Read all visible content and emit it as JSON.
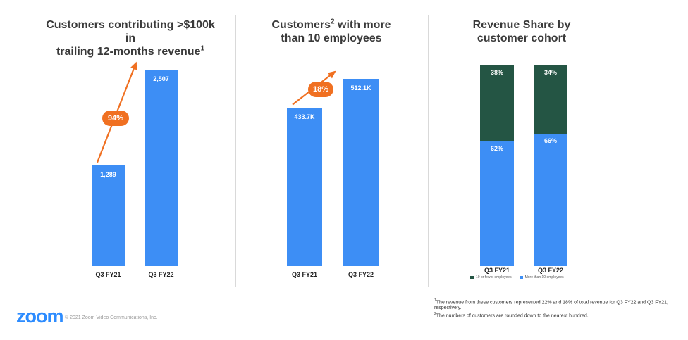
{
  "charts": {
    "left": {
      "title_line1": "Customers contributing >$100k in",
      "title_line2": "trailing 12-months revenue",
      "title_sup": "1",
      "growth": "94%"
    },
    "middle": {
      "title_pre": "Customers",
      "title_sup": "2",
      "title_post": " with more",
      "title_line2": "than 10 employees",
      "growth": "18%"
    },
    "right": {
      "title_line1": "Revenue Share by",
      "title_line2": "customer cohort",
      "legend_dark": "10 or fewer employees",
      "legend_blue": "More than 10 employees"
    }
  },
  "chart_data": [
    {
      "type": "bar",
      "title": "Customers contributing >$100k in trailing 12-months revenue",
      "categories": [
        "Q3 FY21",
        "Q3 FY22"
      ],
      "values": [
        1289,
        2507
      ],
      "labels": [
        "1,289",
        "2,507"
      ],
      "ylim": [
        0,
        2700
      ]
    },
    {
      "type": "bar",
      "title": "Customers with more than 10 employees",
      "categories": [
        "Q3 FY21",
        "Q3 FY22"
      ],
      "values": [
        433.7,
        512.1
      ],
      "labels": [
        "433.7K",
        "512.1K"
      ],
      "ylim": [
        0,
        535
      ]
    },
    {
      "type": "bar",
      "stacked": true,
      "title": "Revenue Share by customer cohort",
      "categories": [
        "Q3 FY21",
        "Q3 FY22"
      ],
      "series": [
        {
          "name": "More than 10 employees",
          "values": [
            62,
            66
          ],
          "labels": [
            "62%",
            "66%"
          ],
          "color": "#3d8ef5"
        },
        {
          "name": "10 or fewer employees",
          "values": [
            38,
            34
          ],
          "labels": [
            "38%",
            "34%"
          ],
          "color": "#245544"
        }
      ],
      "ylim": [
        0,
        100
      ]
    }
  ],
  "footnotes": {
    "n1_sup": "1",
    "n1": "The revenue from these customers represented 22% and 18% of total revenue for Q3 FY22 and Q3 FY21, respectively.",
    "n2_sup": "2",
    "n2": "The numbers of customers are rounded down to the nearest hundred."
  },
  "brand": {
    "logo": "zoom",
    "copyright": "© 2021 Zoom Video Communications, Inc.",
    "accent": "#2d8cff",
    "orange": "#f07021"
  }
}
